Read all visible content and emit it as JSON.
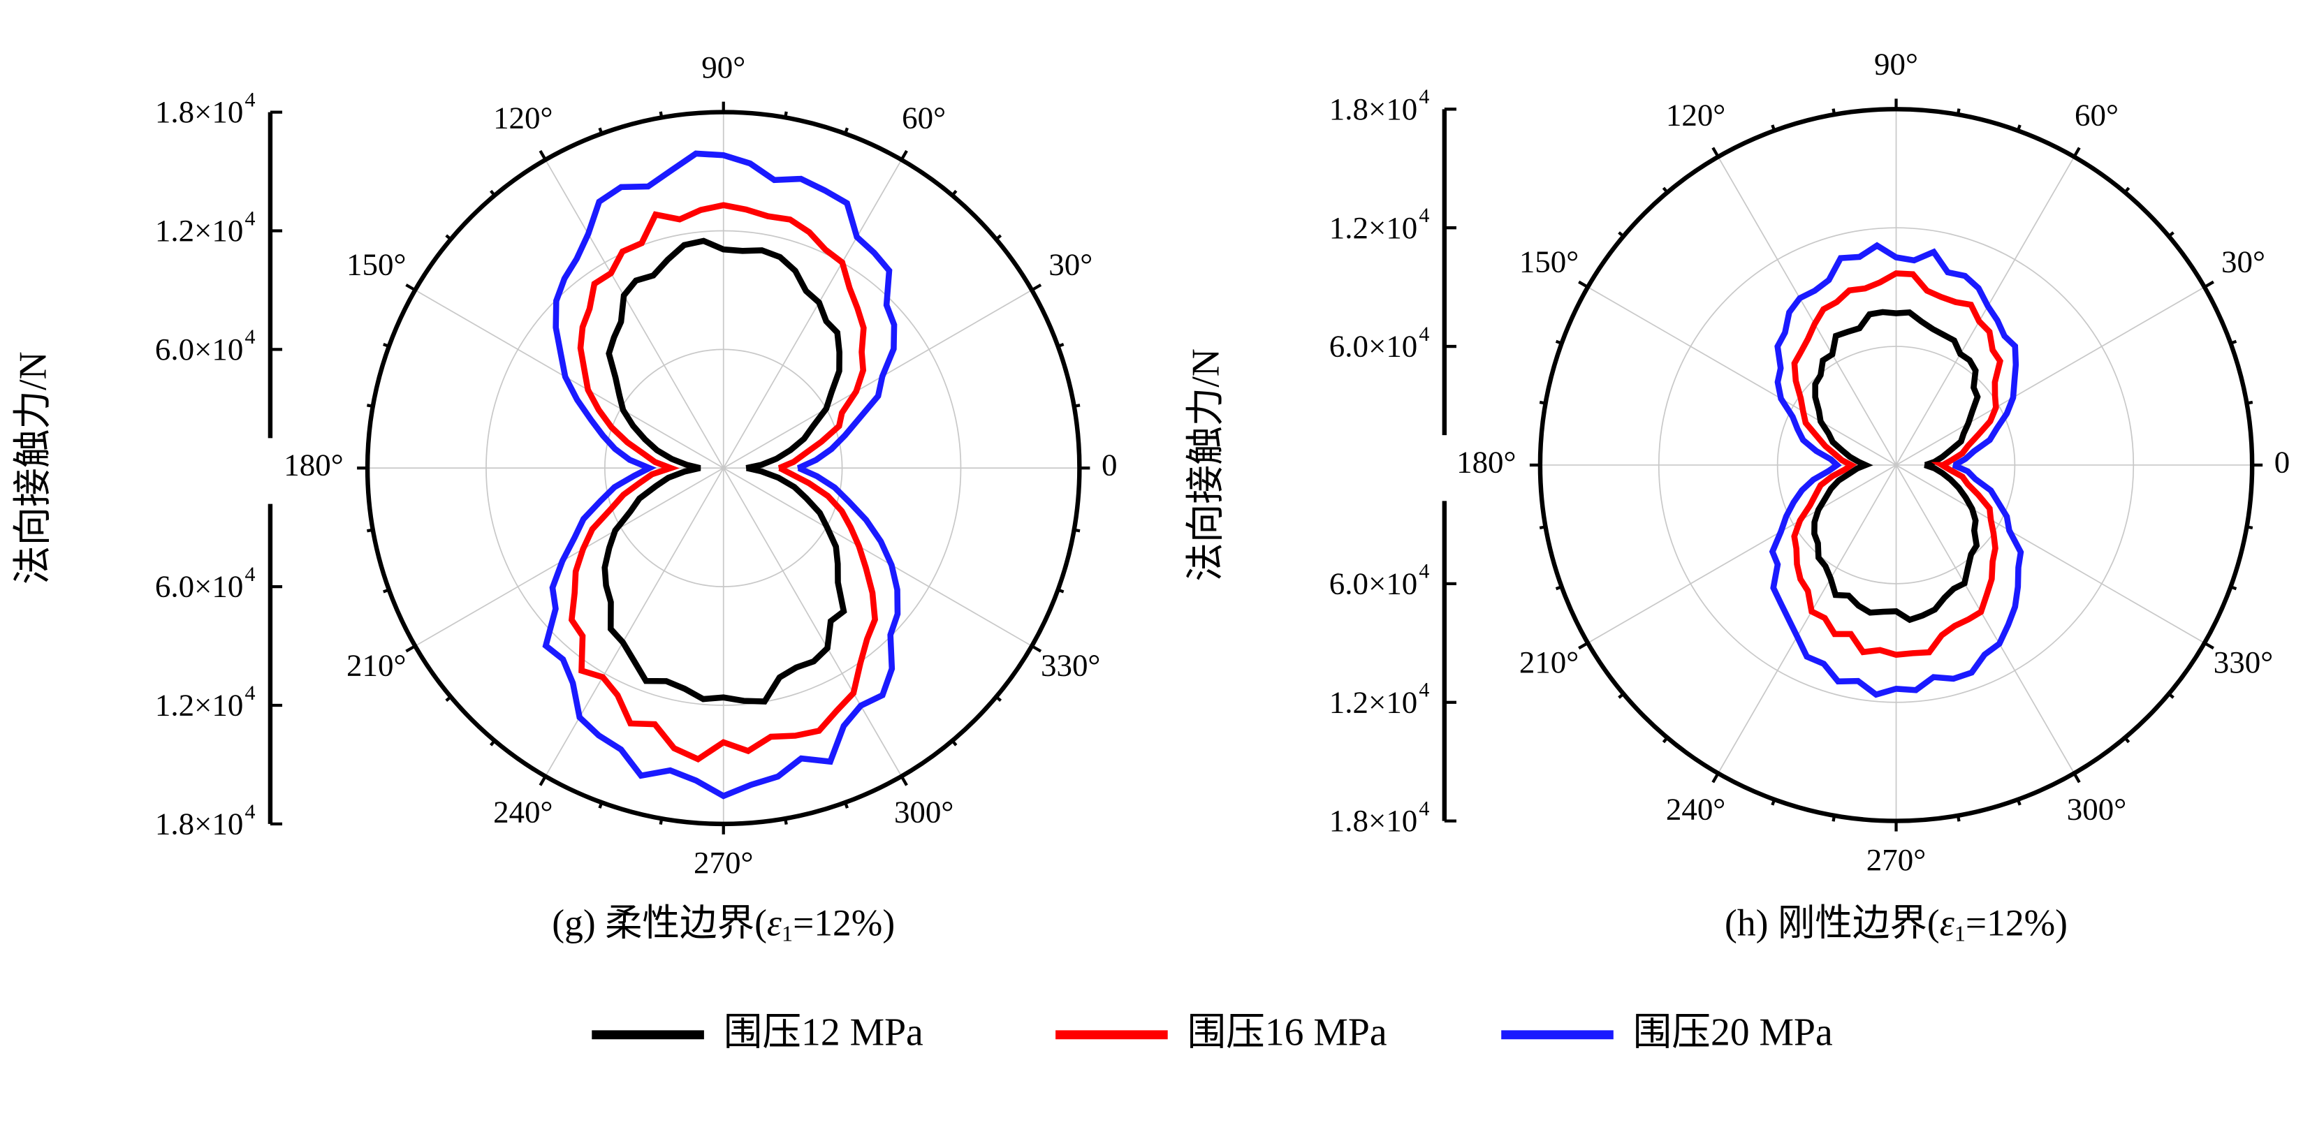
{
  "legend": {
    "items": [
      {
        "label": "围压12 MPa",
        "color": "#000000"
      },
      {
        "label": "围压16 MPa",
        "color": "#ff0000"
      },
      {
        "label": "围压20 MPa",
        "color": "#1a1aff"
      }
    ]
  },
  "chart_data": [
    {
      "type": "polar-line",
      "caption": "(g) 柔性边界(ε1=12%)",
      "caption_parts": {
        "prefix": "(g) 柔性边界(",
        "symbol": "ε",
        "subscript": "1",
        "suffix": "=12%)"
      },
      "ylabel": "法向接触力/N",
      "radial_ticks": [
        "1.8×10",
        "1.2×10",
        "6.0×10",
        "6.0×10",
        "1.2×10",
        "1.8×10"
      ],
      "radial_tick_exponent": "4",
      "angle_labels": [
        "0",
        "30°",
        "60°",
        "90°",
        "120°",
        "150°",
        "180°",
        "210°",
        "240°",
        "270°",
        "300°",
        "330°"
      ],
      "rlim": [
        0,
        18000
      ],
      "grid": true,
      "series": [
        {
          "name": "围压12 MPa",
          "color": "#000000",
          "theta": [
            90,
            270,
            0,
            180
          ],
          "r": [
            11300,
            11800,
            1200,
            1200
          ]
        },
        {
          "name": "围压16 MPa",
          "color": "#ff0000",
          "theta": [
            90,
            270,
            0,
            180
          ],
          "r": [
            13300,
            14400,
            2800,
            2700
          ]
        },
        {
          "name": "围压20 MPa",
          "color": "#1a1aff",
          "theta": [
            90,
            270,
            0,
            180
          ],
          "r": [
            15500,
            16200,
            3900,
            3800
          ]
        }
      ]
    },
    {
      "type": "polar-line",
      "caption": "(h) 刚性边界(ε1=12%)",
      "caption_parts": {
        "prefix": "(h) 刚性边界(",
        "symbol": "ε",
        "subscript": "1",
        "suffix": "=12%)"
      },
      "ylabel": "法向接触力/N",
      "radial_ticks": [
        "1.8×10",
        "1.2×10",
        "6.0×10",
        "6.0×10",
        "1.2×10",
        "1.8×10"
      ],
      "radial_tick_exponent": "4",
      "angle_labels": [
        "0",
        "30°",
        "60°",
        "90°",
        "120°",
        "150°",
        "180°",
        "210°",
        "240°",
        "270°",
        "300°",
        "330°"
      ],
      "rlim": [
        0,
        18000
      ],
      "grid": true,
      "series": [
        {
          "name": "围压12 MPa",
          "color": "#000000",
          "theta": [
            90,
            270,
            0,
            180
          ],
          "r": [
            7600,
            7700,
            1500,
            1500
          ]
        },
        {
          "name": "围压16 MPa",
          "color": "#ff0000",
          "theta": [
            90,
            270,
            0,
            180
          ],
          "r": [
            9400,
            9400,
            2300,
            2200
          ]
        },
        {
          "name": "围压20 MPa",
          "color": "#1a1aff",
          "theta": [
            90,
            270,
            0,
            180
          ],
          "r": [
            10800,
            11300,
            3000,
            2900
          ]
        }
      ]
    }
  ]
}
